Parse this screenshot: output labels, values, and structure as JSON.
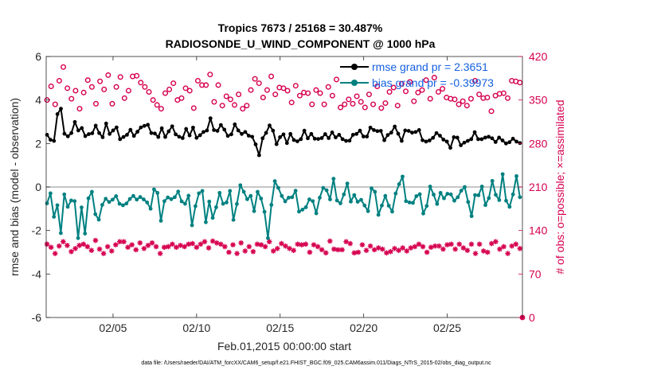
{
  "colors": {
    "rmse": "#000000",
    "bias": "#008080",
    "obs": "#d6004f",
    "zero": "#b4b4b4",
    "legend_text": "#1560e0"
  },
  "chart_data": {
    "type": "line",
    "title": "Tropics 7673 / 25168 = 30.487%",
    "subtitle": "RADIOSONDE_U_WIND_COMPONENT @ 1000 hPa",
    "xlabel": "Feb.01,2015 00:00:00 start",
    "ylabel": "rmse and bias (model - observation)",
    "ylabel_right": "# of obs: o=possible; ×=assimilated",
    "footnote": "data file: /Users/raeder/DAI/ATM_forcXX/CAM6_setup/f.e21.FHIST_BGC.f09_025.CAM6assim.011/Diags_NTrS_2015-02/obs_diag_output.nc",
    "xlim": [
      1,
      29.5
    ],
    "ylim": [
      -6,
      6
    ],
    "ylim_right": [
      0,
      420
    ],
    "x_ticks": [
      5,
      10,
      15,
      20,
      25
    ],
    "x_tick_labels": [
      "02/05",
      "02/10",
      "02/15",
      "02/20",
      "02/25"
    ],
    "y_ticks": [
      -6,
      -4,
      -2,
      0,
      2,
      4,
      6
    ],
    "y_tick_labels": [
      "-6",
      "-4",
      "-2",
      "0",
      "2",
      "4",
      "6"
    ],
    "y_right_ticks": [
      0,
      70,
      140,
      210,
      280,
      350,
      420
    ],
    "y_right_tick_labels": [
      "0",
      "70",
      "140",
      "210",
      "280",
      "350",
      "420"
    ],
    "legend": [
      {
        "name": "rmse",
        "label": "rmse grand pr = 2.3651"
      },
      {
        "name": "bias",
        "label": "bias grand pr = -0.39973"
      }
    ],
    "series": [
      {
        "name": "rmse",
        "axis": "left",
        "values": [
          2.4,
          2.17,
          2.12,
          3.35,
          3.6,
          2.45,
          2.33,
          2.48,
          2.99,
          2.6,
          2.71,
          2.34,
          2.43,
          2.47,
          2.82,
          2.48,
          2.29,
          2.92,
          2.44,
          2.6,
          2.74,
          2.2,
          2.3,
          2.4,
          2.63,
          2.35,
          2.54,
          2.74,
          2.81,
          2.86,
          2.48,
          2.46,
          2.3,
          2.7,
          2.3,
          2.56,
          2.79,
          2.42,
          2.31,
          2.25,
          2.67,
          2.37,
          2.73,
          2.26,
          2.38,
          2.53,
          2.6,
          3.16,
          2.62,
          2.58,
          2.85,
          2.64,
          2.35,
          2.42,
          2.88,
          2.6,
          2.44,
          2.53,
          2.36,
          2.31,
          1.96,
          1.46,
          2.24,
          2.49,
          2.83,
          2.59,
          1.97,
          2.29,
          2.42,
          2.02,
          2.44,
          2.16,
          2.1,
          2.2,
          2.59,
          2.24,
          2.44,
          2.22,
          2.21,
          2.25,
          2.43,
          2.25,
          2.51,
          2.28,
          2.4,
          2.2,
          2.12,
          2.13,
          2.4,
          2.44,
          2.59,
          2.32,
          2.32,
          2.73,
          2.62,
          2.57,
          2.58,
          2.15,
          2.39,
          2.5,
          2.78,
          2.45,
          2.12,
          2.6,
          2.58,
          2.5,
          2.53,
          2.62,
          2.15,
          2.09,
          2.14,
          2.26,
          2.48,
          2.36,
          2.18,
          2.09,
          1.8,
          2.29,
          2.27,
          1.92,
          2.04,
          2.12,
          2.2,
          2.52,
          2.2,
          2.2,
          2.27,
          2.31,
          2.24,
          2.07,
          2.27,
          2.14,
          2.0,
          2.06,
          2.22,
          2.09,
          2.02
        ]
      },
      {
        "name": "bias",
        "axis": "left",
        "values": [
          -0.75,
          -0.29,
          -1.37,
          -0.84,
          -2.12,
          -0.34,
          -0.91,
          -0.62,
          -0.65,
          -2.35,
          -0.94,
          -2.14,
          -0.52,
          -0.22,
          -1.25,
          -1.5,
          -0.82,
          -0.54,
          -0.69,
          -0.58,
          -0.42,
          -0.77,
          -0.84,
          -0.76,
          -0.55,
          -0.41,
          -0.58,
          -0.46,
          -0.57,
          -0.71,
          -1.0,
          -0.11,
          -0.27,
          -1.55,
          -0.65,
          -0.48,
          -0.56,
          -0.47,
          -0.21,
          -0.66,
          -0.77,
          -0.4,
          -1.76,
          -0.88,
          -0.29,
          -0.18,
          -1.62,
          -0.67,
          -1.42,
          -0.93,
          -0.27,
          -0.77,
          -0.71,
          -0.18,
          -1.51,
          -0.78,
          0.08,
          -0.22,
          -0.56,
          -0.41,
          -1.11,
          -0.22,
          -0.53,
          -1.14,
          -2.35,
          -0.82,
          0.27,
          -0.04,
          -0.41,
          -0.66,
          -0.49,
          -0.47,
          -0.17,
          -1.13,
          -1.04,
          -0.93,
          -0.57,
          -0.65,
          -1.21,
          -0.49,
          -0.04,
          -0.15,
          -0.57,
          0.38,
          -0.62,
          -0.75,
          -0.34,
          0.16,
          -0.67,
          -0.37,
          -0.68,
          -0.59,
          -0.85,
          -1.11,
          -0.06,
          -0.22,
          -1.28,
          -0.85,
          -0.41,
          -0.86,
          -1.13,
          -0.3,
          0.13,
          0.48,
          -0.65,
          -0.71,
          -0.73,
          -0.42,
          -0.33,
          -1.22,
          -0.87,
          0.02,
          -0.35,
          -0.78,
          -0.27,
          -0.52,
          -0.31,
          -0.34,
          -0.63,
          -0.47,
          -0.17,
          0.0,
          -0.69,
          -1.34,
          -0.37,
          -0.38,
          0.02,
          -0.83,
          -0.51,
          0.28,
          -0.36,
          -0.6,
          0.59,
          -0.63,
          -0.91,
          -0.34,
          0.5,
          -0.47
        ]
      },
      {
        "name": "possible",
        "axis": "right",
        "values": [
          350,
          372,
          343,
          381,
          403,
          369,
          352,
          365,
          336,
          362,
          382,
          371,
          344,
          380,
          367,
          390,
          344,
          371,
          387,
          353,
          365,
          388,
          389,
          378,
          371,
          363,
          350,
          342,
          336,
          361,
          367,
          377,
          350,
          353,
          369,
          365,
          337,
          381,
          374,
          374,
          391,
          347,
          374,
          341,
          356,
          351,
          342,
          359,
          336,
          341,
          366,
          384,
          377,
          354,
          366,
          388,
          359,
          370,
          369,
          365,
          346,
          373,
          357,
          362,
          361,
          343,
          366,
          361,
          343,
          371,
          357,
          383,
          338,
          343,
          351,
          344,
          356,
          347,
          338,
          359,
          343,
          372,
          337,
          345,
          363,
          370,
          341,
          376,
          364,
          379,
          348,
          362,
          366,
          382,
          352,
          386,
          363,
          368,
          354,
          352,
          351,
          343,
          348,
          341,
          352,
          381,
          359,
          353,
          354,
          332,
          357,
          360,
          361,
          353,
          381,
          380,
          378
        ]
      },
      {
        "name": "assimilated",
        "axis": "right",
        "values": [
          118,
          113,
          103,
          115,
          122,
          116,
          106,
          111,
          116,
          118,
          114,
          108,
          124,
          110,
          103,
          114,
          107,
          117,
          122,
          122,
          113,
          117,
          109,
          120,
          111,
          116,
          120,
          114,
          103,
          113,
          114,
          118,
          113,
          116,
          114,
          118,
          119,
          113,
          118,
          122,
          112,
          123,
          120,
          118,
          114,
          105,
          117,
          103,
          120,
          107,
          114,
          106,
          118,
          117,
          114,
          122,
          107,
          111,
          119,
          115,
          111,
          108,
          118,
          117,
          118,
          105,
          117,
          114,
          109,
          104,
          123,
          110,
          109,
          109,
          122,
          119,
          104,
          105,
          117,
          108,
          115,
          109,
          112,
          110,
          104,
          106,
          111,
          108,
          112,
          107,
          112,
          114,
          118,
          114,
          105,
          113,
          115,
          115,
          110,
          117,
          118,
          110,
          118,
          112,
          108,
          118,
          103,
          118,
          107,
          105,
          119,
          122,
          110,
          114,
          103,
          115,
          118,
          111
        ]
      }
    ]
  }
}
